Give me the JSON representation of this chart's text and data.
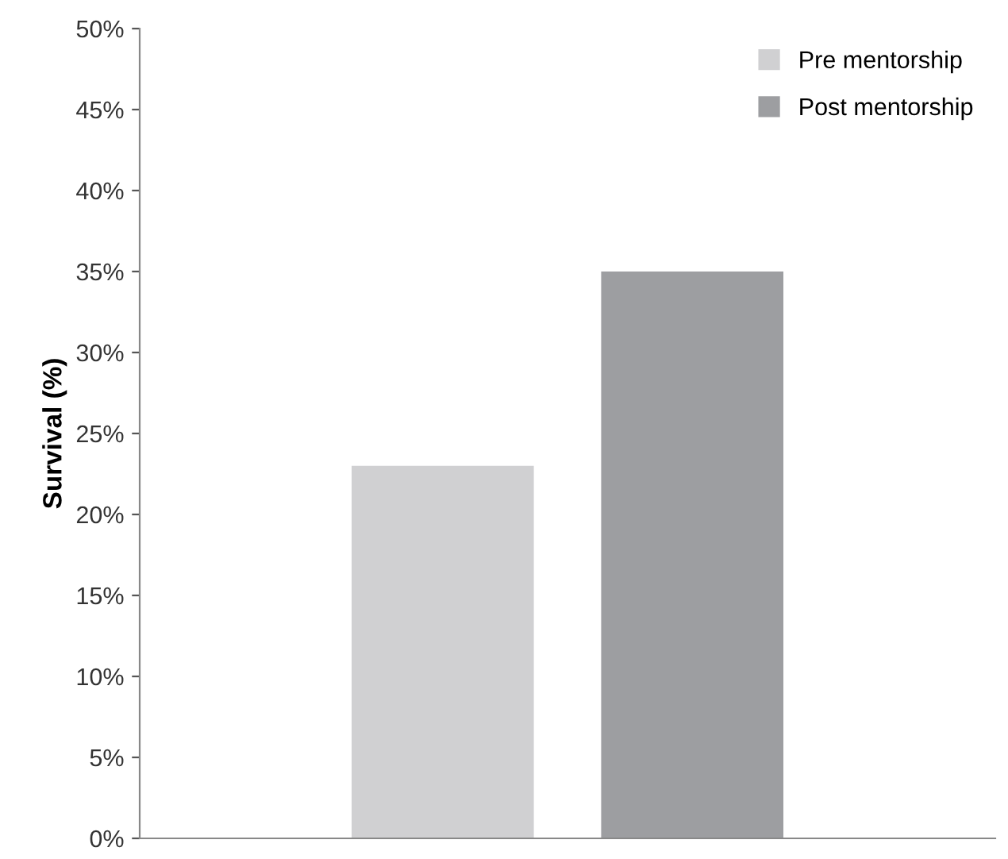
{
  "chart_data": {
    "type": "bar",
    "ylabel": "Survival (%)",
    "categories": [
      null
    ],
    "series": [
      {
        "name": "Pre mentorship",
        "color": "#d0d0d2",
        "values": [
          23
        ]
      },
      {
        "name": "Post mentorship",
        "color": "#9d9ea1",
        "values": [
          35
        ]
      }
    ],
    "ylim": [
      0,
      50
    ],
    "yticks": [
      {
        "value": 0,
        "label": "0%"
      },
      {
        "value": 5,
        "label": "5%"
      },
      {
        "value": 10,
        "label": "10%"
      },
      {
        "value": 15,
        "label": "15%"
      },
      {
        "value": 20,
        "label": "20%"
      },
      {
        "value": 25,
        "label": "25%"
      },
      {
        "value": 30,
        "label": "30%"
      },
      {
        "value": 35,
        "label": "35%"
      },
      {
        "value": 40,
        "label": "40%"
      },
      {
        "value": 45,
        "label": "45%"
      },
      {
        "value": 50,
        "label": "50%"
      }
    ],
    "legend": "top right",
    "grid": false
  }
}
